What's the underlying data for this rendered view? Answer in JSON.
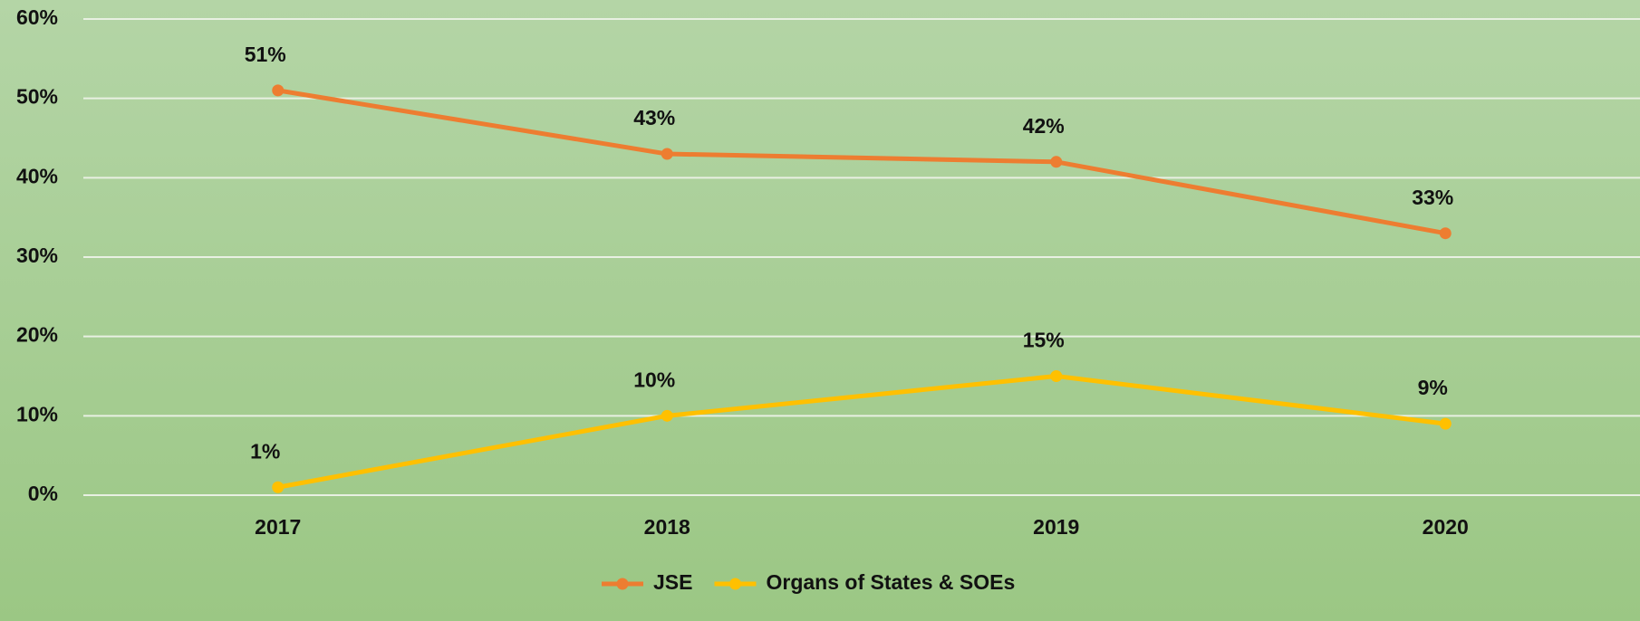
{
  "chart_data": {
    "type": "line",
    "categories": [
      "2017",
      "2018",
      "2019",
      "2020"
    ],
    "series": [
      {
        "name": "JSE",
        "color": "#ed7d31",
        "values": [
          51,
          43,
          42,
          33
        ],
        "value_labels": [
          "51%",
          "43%",
          "42%",
          "33%"
        ]
      },
      {
        "name": "Organs of States & SOEs",
        "color": "#ffc000",
        "values": [
          1,
          10,
          15,
          9
        ],
        "value_labels": [
          "1%",
          "10%",
          "15%",
          "9%"
        ]
      }
    ],
    "ylim": [
      0,
      60
    ],
    "yticks": [
      {
        "value": 0,
        "label": "0%"
      },
      {
        "value": 10,
        "label": "10%"
      },
      {
        "value": 20,
        "label": "20%"
      },
      {
        "value": 30,
        "label": "30%"
      },
      {
        "value": 40,
        "label": "40%"
      },
      {
        "value": 50,
        "label": "50%"
      },
      {
        "value": 60,
        "label": "60%"
      }
    ],
    "grid": true,
    "legend": "bottom"
  }
}
